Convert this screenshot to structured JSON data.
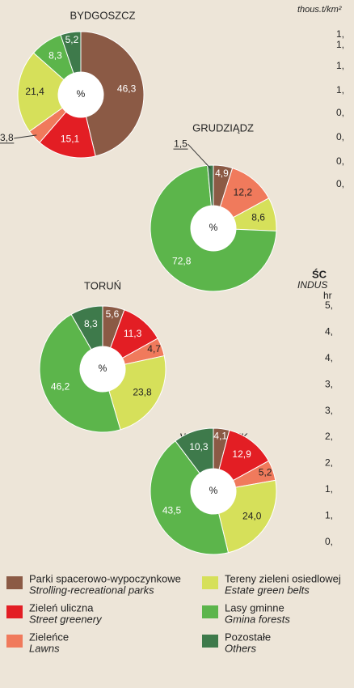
{
  "chart_data": [
    {
      "type": "pie",
      "title": "BYDGOSZCZ",
      "center_label": "%",
      "values": [
        46.3,
        15.1,
        3.8,
        21.4,
        8.3,
        5.2
      ],
      "value_labels": [
        "46,3",
        "15,1",
        "3,8",
        "21,4",
        "8,3",
        "5,2"
      ]
    },
    {
      "type": "pie",
      "title": "GRUDZIĄDZ",
      "center_label": "%",
      "values": [
        4.9,
        null,
        12.2,
        8.6,
        72.8,
        1.5
      ],
      "value_labels": [
        "4,9",
        null,
        "12,2",
        "8,6",
        "72,8",
        "1,5"
      ]
    },
    {
      "type": "pie",
      "title": "TORUŃ",
      "center_label": "%",
      "values": [
        5.6,
        11.3,
        4.7,
        23.8,
        46.2,
        8.3
      ],
      "value_labels": [
        "5,6",
        "11,3",
        "4,7",
        "23,8",
        "46,2",
        "8,3"
      ]
    },
    {
      "type": "pie",
      "title": "WŁOCŁAWEK",
      "center_label": "%",
      "values": [
        4.1,
        12.9,
        5.2,
        24.0,
        43.5,
        10.3
      ],
      "value_labels": [
        "4,1",
        "12,9",
        "5,2",
        "24,0",
        "43,5",
        "10,3"
      ]
    }
  ],
  "legend": [
    {
      "name": "Parki spacerowo-wypoczynkowe",
      "name_en": "Strolling-recreational parks",
      "color": "#8b5a45"
    },
    {
      "name": "Zieleń uliczna",
      "name_en": "Street greenery",
      "color": "#e31e24"
    },
    {
      "name": "Zieleńce",
      "name_en": "Lawns",
      "color": "#f07a5c"
    },
    {
      "name": "Tereny zieleni osiedlowej",
      "name_en": "Estate green belts",
      "color": "#d6e05a"
    },
    {
      "name": "Lasy gminne",
      "name_en": "Gmina forests",
      "color": "#5cb54b"
    },
    {
      "name": "Pozostałe",
      "name_en": "Others",
      "color": "#3e7a4b"
    }
  ],
  "clipped": {
    "unit_a": "thous.t/km²",
    "ticks_a": [
      "1,",
      "1,",
      "1,",
      "1,",
      "0,",
      "0,",
      "0,",
      "0,"
    ],
    "heading": "ŚC",
    "subheading": "INDUS",
    "unit_b": "hr",
    "ticks_b": [
      "5,",
      "4,",
      "4,",
      "3,",
      "3,",
      "2,",
      "2,",
      "1,",
      "1,",
      "0,"
    ]
  }
}
